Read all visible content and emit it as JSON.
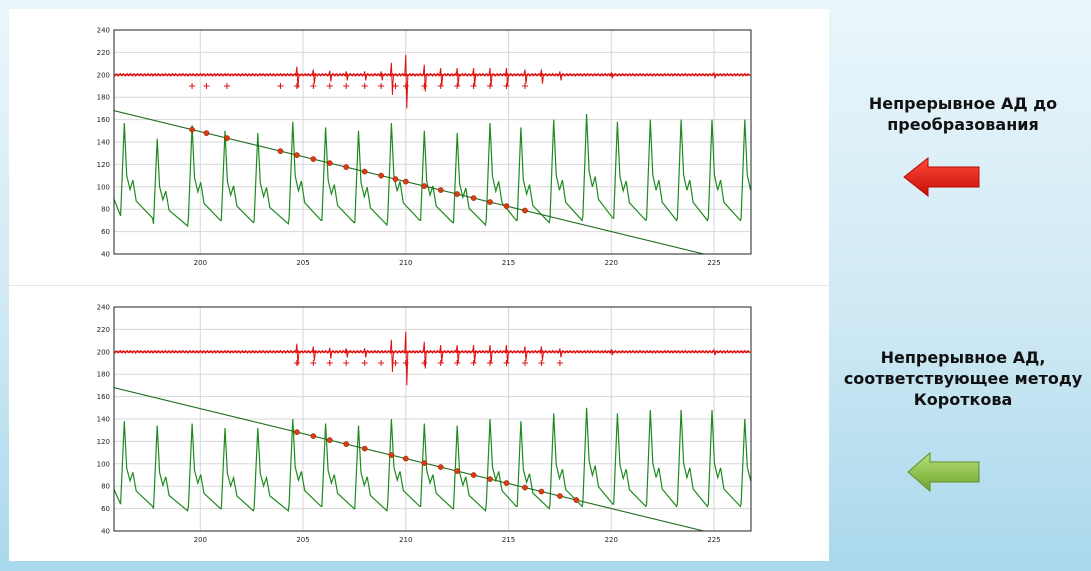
{
  "captions": {
    "top": "Непрерывное АД до преобразования",
    "bottom": "Непрерывное АД, соответствующее методу Короткова"
  },
  "colors": {
    "pressure_wave": "#1f8a1f",
    "cuff_line": "#1e6b1e",
    "korotkoff_signal": "#e01010",
    "marker": "#e03a10",
    "grid": "#d7d7d7",
    "arrow_red": "#e81e12",
    "arrow_green": "#8cc63f"
  },
  "chart_data": [
    {
      "type": "line",
      "title": "",
      "xlim": [
        195.8,
        226.8
      ],
      "ylim": [
        40,
        240
      ],
      "x_ticks": [
        200,
        205,
        210,
        215,
        220,
        225
      ],
      "y_ticks": [
        40,
        60,
        80,
        100,
        120,
        140,
        160,
        180,
        200,
        220,
        240
      ],
      "grid": true,
      "series": [
        {
          "role": "continuous_bp_wave",
          "color": "green",
          "beat_peaks_x": [
            196.3,
            197.9,
            199.6,
            201.2,
            202.8,
            204.5,
            206.1,
            207.7,
            209.3,
            210.9,
            212.5,
            214.1,
            215.6,
            217.2,
            218.8,
            220.3,
            221.9,
            223.4,
            224.9,
            226.5
          ],
          "systolic": [
            157,
            143,
            155,
            150,
            148,
            158,
            153,
            150,
            157,
            150,
            148,
            157,
            153,
            160,
            165,
            158,
            160,
            160,
            160,
            160
          ],
          "diastolic": [
            72,
            65,
            70,
            68,
            67,
            70,
            68,
            66,
            70,
            68,
            66,
            70,
            68,
            70,
            72,
            70,
            70,
            70,
            70,
            70
          ]
        },
        {
          "role": "cuff_pressure_line",
          "color": "darkgreen",
          "x": [
            195.8,
            224.5
          ],
          "y": [
            168,
            40
          ]
        },
        {
          "role": "korotkoff_signal_baseline",
          "color": "red",
          "y": 200
        },
        {
          "role": "korotkoff_spikes",
          "color": "red",
          "x": [
            204.7,
            205.5,
            206.3,
            207.1,
            208.0,
            208.8,
            209.3,
            210.0,
            210.9,
            211.7,
            212.5,
            213.3,
            214.1,
            214.9,
            215.8,
            216.6,
            217.5,
            220.0,
            225.0
          ],
          "amplitude": [
            12,
            8,
            6,
            5,
            5,
            5,
            18,
            30,
            15,
            10,
            10,
            10,
            10,
            10,
            8,
            8,
            5,
            3,
            3
          ]
        },
        {
          "role": "detected_beat_markers",
          "color": "red",
          "x": [
            199.6,
            200.3,
            201.3,
            203.9,
            204.7,
            205.5,
            206.3,
            207.1,
            208.0,
            208.8,
            209.5,
            210.0,
            210.9,
            211.7,
            212.5,
            213.3,
            214.1,
            214.9,
            215.8
          ],
          "y": [
            190,
            190,
            190,
            190,
            190,
            190,
            190,
            190,
            190,
            190,
            190,
            190,
            190,
            190,
            190,
            190,
            190,
            190,
            190
          ],
          "on_line_x": [
            199.6,
            200.3,
            201.3,
            203.9,
            204.7,
            205.5,
            206.3,
            207.1,
            208.0,
            208.8,
            209.5,
            210.0,
            210.9,
            211.7,
            212.5,
            213.3,
            214.1,
            214.9,
            215.8
          ]
        }
      ]
    },
    {
      "type": "line",
      "title": "",
      "xlim": [
        195.8,
        226.8
      ],
      "ylim": [
        40,
        240
      ],
      "x_ticks": [
        200,
        205,
        210,
        215,
        220,
        225
      ],
      "y_ticks": [
        40,
        60,
        80,
        100,
        120,
        140,
        160,
        180,
        200,
        220,
        240
      ],
      "grid": true,
      "series": [
        {
          "role": "continuous_bp_wave",
          "color": "green",
          "beat_peaks_x": [
            196.3,
            197.9,
            199.6,
            201.2,
            202.8,
            204.5,
            206.1,
            207.7,
            209.3,
            210.9,
            212.5,
            214.1,
            215.6,
            217.2,
            218.8,
            220.3,
            221.9,
            223.4,
            224.9,
            226.5
          ],
          "systolic": [
            138,
            134,
            136,
            132,
            132,
            140,
            136,
            134,
            140,
            136,
            134,
            140,
            138,
            145,
            150,
            145,
            148,
            148,
            148,
            140
          ],
          "diastolic": [
            62,
            58,
            60,
            58,
            58,
            62,
            60,
            58,
            62,
            60,
            58,
            62,
            60,
            62,
            64,
            62,
            62,
            62,
            62,
            62
          ]
        },
        {
          "role": "cuff_pressure_line",
          "color": "darkgreen",
          "x": [
            195.8,
            224.5
          ],
          "y": [
            168,
            40
          ]
        },
        {
          "role": "korotkoff_signal_baseline",
          "color": "red",
          "y": 200
        },
        {
          "role": "korotkoff_spikes",
          "color": "red",
          "x": [
            204.7,
            205.5,
            206.3,
            207.1,
            208.0,
            209.3,
            210.0,
            210.9,
            211.7,
            212.5,
            213.3,
            214.1,
            214.9,
            215.8,
            216.6,
            217.5,
            220.0,
            225.0
          ],
          "amplitude": [
            12,
            8,
            6,
            5,
            5,
            18,
            30,
            15,
            10,
            10,
            10,
            10,
            10,
            8,
            8,
            5,
            3,
            3
          ]
        },
        {
          "role": "detected_beat_markers",
          "color": "red",
          "x": [
            204.7,
            205.5,
            206.3,
            207.1,
            208.0,
            208.8,
            209.5,
            210.0,
            210.9,
            211.7,
            212.5,
            213.3,
            214.1,
            214.9,
            215.8,
            216.6,
            217.5
          ],
          "y": [
            190,
            190,
            190,
            190,
            190,
            190,
            190,
            190,
            190,
            190,
            190,
            190,
            190,
            190,
            190,
            190,
            190
          ],
          "on_line_x": [
            204.7,
            205.5,
            206.3,
            207.1,
            208.0,
            209.3,
            210.0,
            210.9,
            211.7,
            212.5,
            213.3,
            214.1,
            214.9,
            215.8,
            216.6,
            217.5,
            218.3
          ]
        }
      ]
    }
  ]
}
